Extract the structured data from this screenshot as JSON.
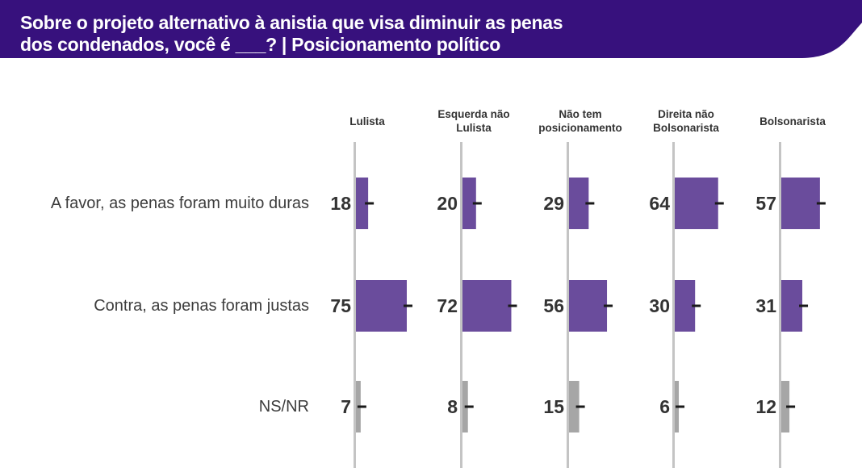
{
  "header": {
    "title_line1": "Sobre o projeto alternativo à anistia que visa diminuir as penas",
    "title_line2": "dos condenados, você é ___? | Posicionamento político"
  },
  "colors": {
    "banner": "#37117d",
    "bar_primary": "#6a4c9c",
    "bar_nsnr": "#a6a6a6",
    "axis": "#c4c4c4",
    "error_tick": "#1a1a1a",
    "value_text": "#333333"
  },
  "chart_data": {
    "type": "bar",
    "orientation": "horizontal",
    "layout": "small-multiples",
    "title": "Sobre o projeto alternativo à anistia que visa diminuir as penas dos condenados, você é ___? | Posicionamento político",
    "categories": [
      "A favor, as penas foram muito duras",
      "Contra, as penas foram justas",
      "NS/NR"
    ],
    "series": [
      {
        "name": "Lulista",
        "values": [
          18,
          75,
          7
        ]
      },
      {
        "name": "Esquerda não Lulista",
        "values": [
          20,
          72,
          8
        ]
      },
      {
        "name": "Não tem posicionamento",
        "values": [
          29,
          56,
          15
        ]
      },
      {
        "name": "Direita não Bolsonarista",
        "values": [
          64,
          30,
          6
        ]
      },
      {
        "name": "Bolsonarista",
        "values": [
          57,
          31,
          12
        ]
      }
    ],
    "column_headers": [
      [
        "Lulista"
      ],
      [
        "Esquerda não",
        "Lulista"
      ],
      [
        "Não tem",
        "posicionamento"
      ],
      [
        "Direita não",
        "Bolsonarista"
      ],
      [
        "Bolsonarista"
      ]
    ],
    "unit": "%",
    "xlim": [
      0,
      100
    ],
    "error_bars": true,
    "grid": false,
    "legend": "none"
  }
}
